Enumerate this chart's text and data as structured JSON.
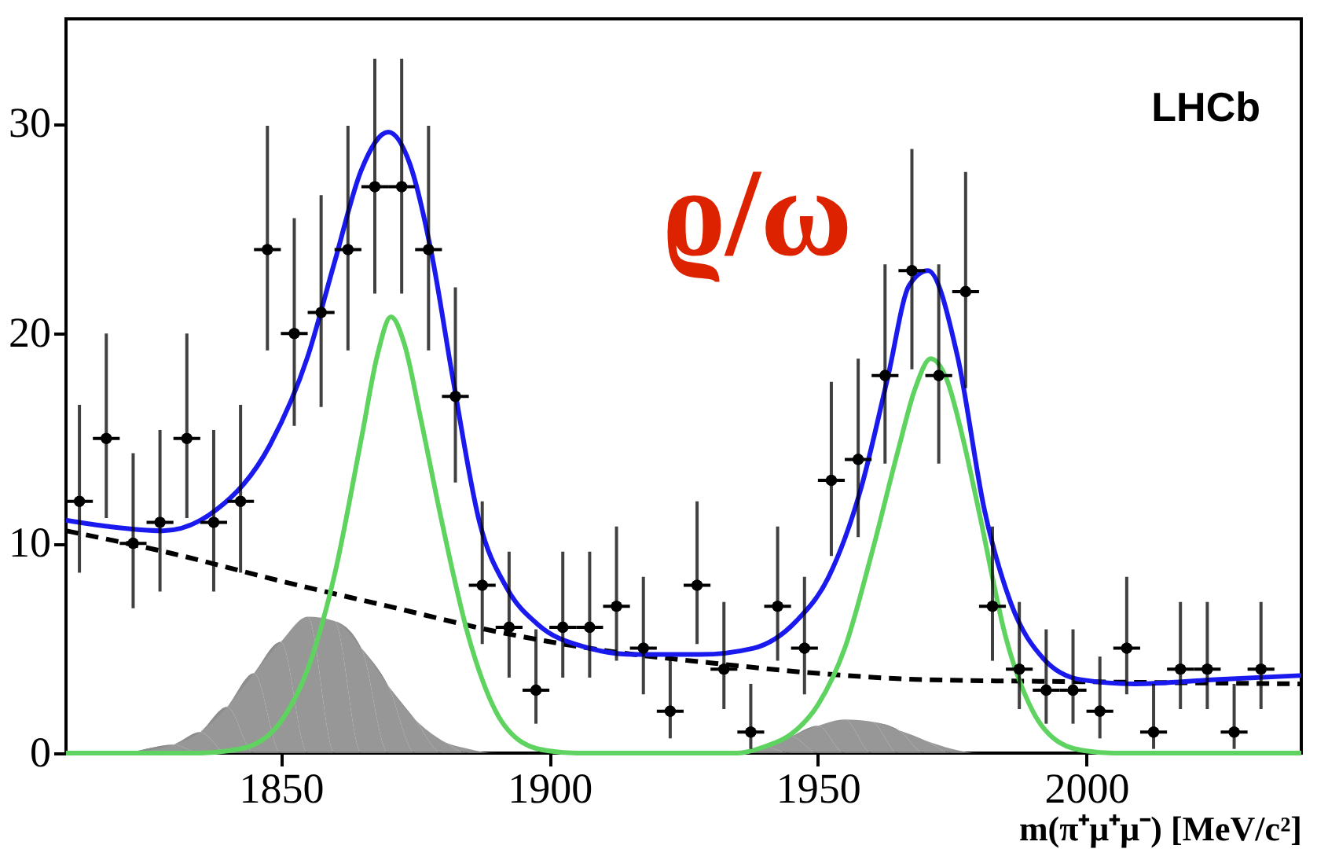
{
  "chart_data": {
    "type": "scatter",
    "xlabel": "m(π⁺μ⁺μ⁻) [MeV/c²]",
    "annotations": [
      "ϱ/ω",
      "LHCb"
    ],
    "xlim": [
      1810,
      2040
    ],
    "xticks": [
      1850,
      1900,
      1950,
      2000
    ],
    "ylim": [
      0,
      35
    ],
    "yticks": [
      0,
      10,
      20,
      30
    ],
    "grid": false,
    "series": [
      {
        "type": "area",
        "color": "#8c8c8c",
        "x": [
          1810,
          1820,
          1830,
          1835,
          1840,
          1845,
          1850,
          1855,
          1860,
          1865,
          1870,
          1875,
          1880,
          1885,
          1890,
          1935,
          1940,
          1945,
          1950,
          1955,
          1960,
          1965,
          1970,
          1975,
          1980,
          2040
        ],
        "values": [
          0,
          0,
          0.4,
          1,
          2.2,
          3.8,
          5.3,
          6.5,
          6.3,
          5,
          3.2,
          1.6,
          0.6,
          0.2,
          0,
          0,
          0.3,
          0.8,
          1.3,
          1.6,
          1.5,
          1.1,
          0.6,
          0.2,
          0,
          0
        ]
      },
      {
        "type": "line",
        "line_style": "dashed",
        "color": "#000000",
        "x": [
          1810,
          1830,
          1850,
          1870,
          1890,
          1910,
          1930,
          1950,
          1970,
          2000,
          2040
        ],
        "values": [
          10.6,
          9.5,
          8.2,
          7.0,
          5.8,
          4.9,
          4.3,
          3.8,
          3.5,
          3.4,
          3.3
        ]
      },
      {
        "type": "line",
        "line_style": "solid",
        "color": "#5fd35f",
        "x": [
          1810,
          1835,
          1840,
          1845,
          1850,
          1855,
          1860,
          1865,
          1868,
          1870.5,
          1873,
          1876,
          1880,
          1885,
          1890,
          1895,
          1900,
          1905,
          1935,
          1940,
          1945,
          1950,
          1955,
          1960,
          1965,
          1968,
          1971,
          1974,
          1977,
          1980,
          1985,
          1990,
          1995,
          2000,
          2005,
          2040
        ],
        "values": [
          0,
          0,
          0.1,
          0.4,
          1.5,
          4,
          8.5,
          15,
          19,
          20.8,
          19.5,
          16,
          11,
          5.5,
          2,
          0.5,
          0.1,
          0,
          0,
          0.3,
          0.9,
          2.3,
          5,
          9.5,
          14.5,
          17.3,
          18.8,
          17.8,
          15,
          11.5,
          5.5,
          2,
          0.5,
          0.1,
          0,
          0
        ]
      },
      {
        "type": "line",
        "line_style": "solid",
        "color": "#1a1aee",
        "x": [
          1810,
          1818,
          1828,
          1838,
          1848,
          1855,
          1860,
          1865,
          1870,
          1874,
          1878,
          1882,
          1887,
          1892,
          1898,
          1906,
          1916,
          1928,
          1938,
          1946,
          1952,
          1958,
          1963,
          1967,
          1970.5,
          1976,
          1981,
          1986,
          1992,
          1999,
          2009,
          2024,
          2040
        ],
        "values": [
          11.1,
          10.8,
          10.6,
          11.6,
          14.7,
          18.9,
          23.4,
          27.8,
          29.6,
          28.1,
          23.9,
          17.9,
          11.0,
          7.9,
          6.1,
          5.1,
          4.7,
          4.7,
          5.0,
          6.3,
          8.4,
          12.6,
          17.9,
          22.3,
          23.0,
          18.9,
          11.6,
          7.1,
          4.5,
          3.5,
          3.3,
          3.5,
          3.7
        ]
      },
      {
        "marker": "circle",
        "color": "#000000",
        "x": [
          1812.5,
          1817.5,
          1822.5,
          1827.5,
          1832.5,
          1837.5,
          1842.5,
          1847.5,
          1852.5,
          1857.5,
          1862.5,
          1867.5,
          1872.5,
          1877.5,
          1882.5,
          1887.5,
          1892.5,
          1897.5,
          1902.5,
          1907.5,
          1912.5,
          1917.5,
          1922.5,
          1927.5,
          1932.5,
          1937.5,
          1942.5,
          1947.5,
          1952.5,
          1957.5,
          1962.5,
          1967.5,
          1972.5,
          1977.5,
          1982.5,
          1987.5,
          1992.5,
          1997.5,
          2002.5,
          2007.5,
          2012.5,
          2017.5,
          2022.5,
          2027.5,
          2032.5
        ],
        "values": [
          12,
          15,
          10,
          11,
          15,
          11,
          12,
          24,
          20,
          21,
          24,
          27,
          27,
          24,
          17,
          8,
          6,
          3,
          6,
          6,
          7,
          5,
          2,
          8,
          4,
          1,
          7,
          5,
          13,
          14,
          18,
          23,
          18,
          22,
          7,
          4,
          3,
          3,
          2,
          5,
          1,
          4,
          4,
          1,
          4
        ],
        "errors": [
          [
            8.6,
            16.6
          ],
          [
            11.2,
            20.0
          ],
          [
            6.9,
            14.3
          ],
          [
            7.7,
            15.4
          ],
          [
            11.2,
            20.0
          ],
          [
            7.7,
            15.4
          ],
          [
            8.6,
            16.6
          ],
          [
            19.2,
            29.9
          ],
          [
            15.6,
            25.5
          ],
          [
            16.5,
            26.6
          ],
          [
            19.2,
            29.9
          ],
          [
            21.9,
            33.1
          ],
          [
            21.9,
            33.1
          ],
          [
            19.2,
            29.9
          ],
          [
            12.9,
            22.2
          ],
          [
            5.2,
            12.0
          ],
          [
            3.6,
            9.6
          ],
          [
            1.4,
            5.9
          ],
          [
            3.6,
            9.6
          ],
          [
            3.6,
            9.6
          ],
          [
            4.4,
            10.8
          ],
          [
            2.8,
            8.4
          ],
          [
            0.7,
            4.6
          ],
          [
            5.2,
            12.0
          ],
          [
            2.1,
            7.2
          ],
          [
            0.2,
            3.3
          ],
          [
            4.4,
            10.8
          ],
          [
            2.8,
            8.4
          ],
          [
            9.4,
            17.7
          ],
          [
            10.3,
            18.8
          ],
          [
            13.8,
            23.3
          ],
          [
            18.3,
            28.8
          ],
          [
            13.8,
            23.3
          ],
          [
            17.4,
            27.7
          ],
          [
            4.4,
            10.8
          ],
          [
            2.1,
            7.2
          ],
          [
            1.4,
            5.9
          ],
          [
            1.4,
            5.9
          ],
          [
            0.7,
            4.6
          ],
          [
            2.8,
            8.4
          ],
          [
            0.2,
            3.3
          ],
          [
            2.1,
            7.2
          ],
          [
            2.1,
            7.2
          ],
          [
            0.2,
            3.3
          ],
          [
            2.1,
            7.2
          ]
        ],
        "xerrors": [
          2.5,
          2.5,
          2.5,
          2.5,
          2.5,
          2.5,
          2.5,
          2.5,
          2.5,
          2.5,
          2.5,
          2.5,
          2.5,
          2.5,
          2.5,
          2.5,
          2.5,
          2.5,
          2.5,
          2.5,
          2.5,
          2.5,
          2.5,
          2.5,
          2.5,
          2.5,
          2.5,
          2.5,
          2.5,
          2.5,
          2.5,
          2.5,
          2.5,
          2.5,
          2.5,
          2.5,
          2.5,
          2.5,
          2.5,
          2.5,
          2.5,
          2.5,
          2.5,
          2.5,
          2.5
        ]
      }
    ]
  }
}
